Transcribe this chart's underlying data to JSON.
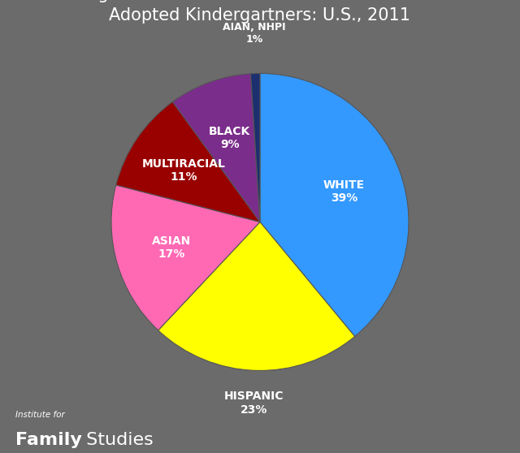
{
  "slices": [
    {
      "label": "WHITE",
      "pct": 39,
      "color": "#3399FF",
      "label_r": 0.6
    },
    {
      "label": "HISPANIC",
      "pct": 23,
      "color": "#FFFF00",
      "label_r": 1.22
    },
    {
      "label": "ASIAN",
      "pct": 17,
      "color": "#FF69B4",
      "label_r": 0.62
    },
    {
      "label": "MULTIRACIAL",
      "pct": 11,
      "color": "#990000",
      "label_r": 0.62
    },
    {
      "label": "BLACK",
      "pct": 9,
      "color": "#7B2D8B",
      "label_r": 0.6
    },
    {
      "label": "AIAN, NHPI",
      "pct": 1,
      "color": "#1C2F6E",
      "label_r": 1.22
    }
  ],
  "background_color": "#6b6b6b",
  "title_color": "#ffffff",
  "label_color": "#ffffff",
  "title_fontsize": 15,
  "label_fontsize": 10,
  "startangle": 90,
  "watermark_top": "Institute for",
  "watermark_bottom_bold": "Family",
  "watermark_bottom_light": " Studies",
  "watermark_color": "#ffffff"
}
